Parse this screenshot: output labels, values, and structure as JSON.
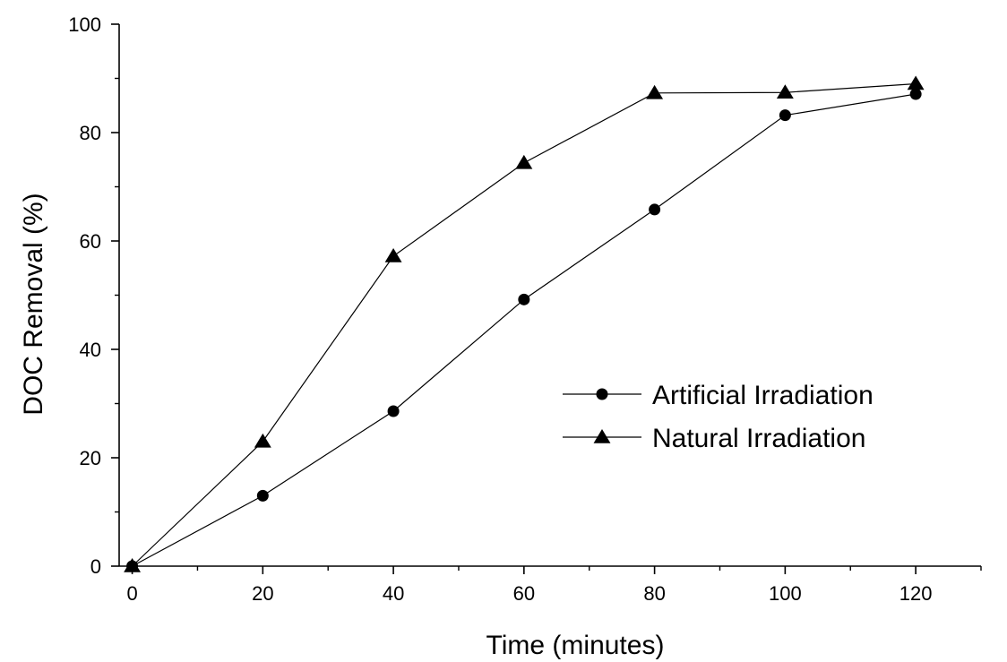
{
  "chart_data": {
    "type": "line",
    "title": "",
    "xlabel": "Time (minutes)",
    "ylabel": "DOC Removal (%)",
    "xlim": [
      -2,
      130
    ],
    "ylim": [
      0,
      100
    ],
    "x_ticks": [
      0,
      20,
      40,
      60,
      80,
      100,
      120
    ],
    "x_tick_labels": [
      "0",
      "20",
      "40",
      "60",
      "80",
      "100",
      "120"
    ],
    "y_ticks": [
      0,
      20,
      40,
      60,
      80,
      100
    ],
    "y_tick_labels": [
      "0",
      "20",
      "40",
      "60",
      "80",
      "100"
    ],
    "grid": false,
    "legend_position": "center-right",
    "series": [
      {
        "name": "Artificial Irradiation",
        "marker": "circle",
        "color": "#000000",
        "x": [
          0,
          20,
          40,
          60,
          80,
          100,
          120
        ],
        "y": [
          0,
          13,
          28.6,
          49.2,
          65.8,
          83.2,
          87.1
        ]
      },
      {
        "name": "Natural Irradiation",
        "marker": "triangle",
        "color": "#000000",
        "x": [
          0,
          20,
          40,
          60,
          80,
          100,
          120
        ],
        "y": [
          0,
          23,
          57.2,
          74.4,
          87.3,
          87.4,
          89
        ]
      }
    ]
  }
}
